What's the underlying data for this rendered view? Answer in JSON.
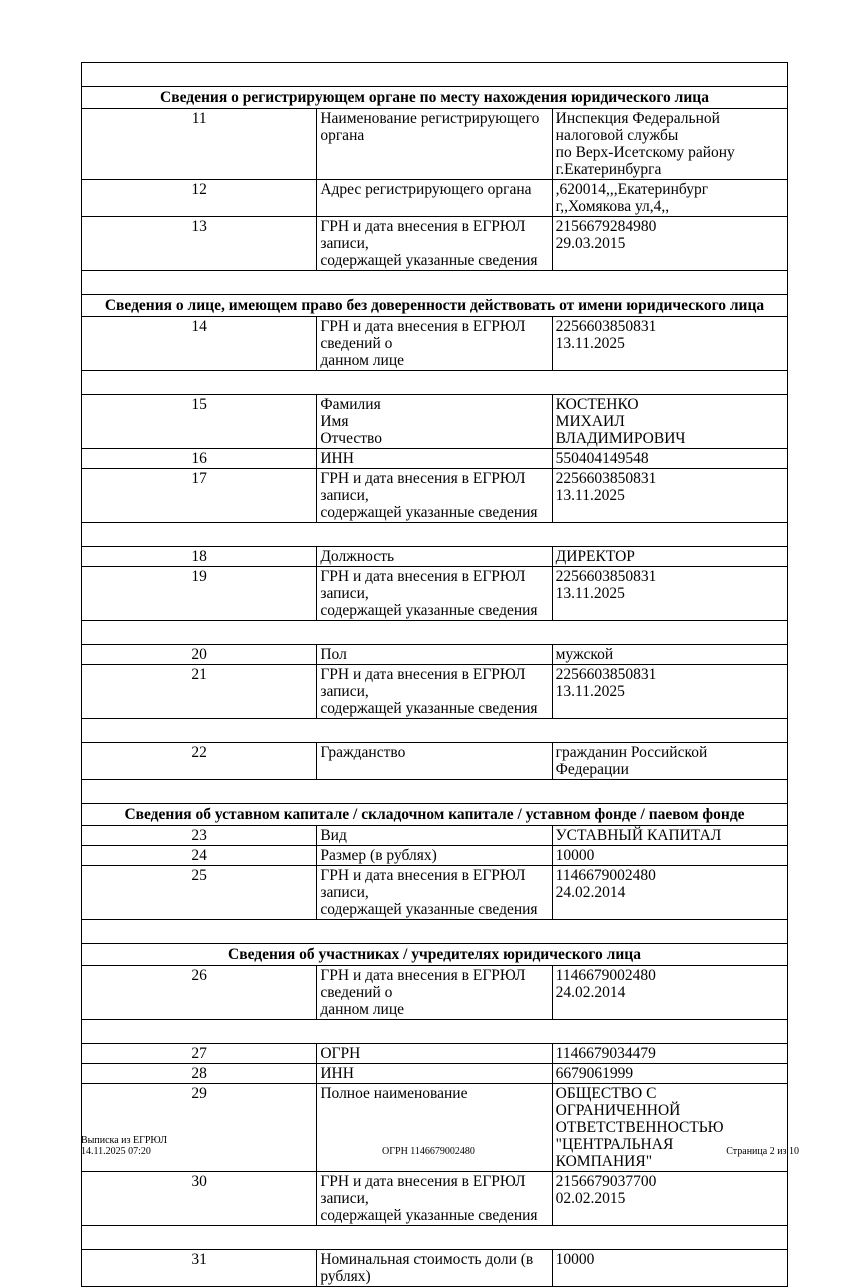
{
  "rows": [
    {
      "type": "empty"
    },
    {
      "type": "header",
      "text": "Сведения о регистрирующем органе по месту нахождения юридического лица"
    },
    {
      "type": "row",
      "num": "11",
      "label": "Наименование регистрирующего органа",
      "value": "Инспекция Федеральной налоговой службы\nпо Верх-Исетскому району г.Екатеринбурга"
    },
    {
      "type": "row",
      "num": "12",
      "label": "Адрес регистрирующего органа",
      "value": ",620014,,,Екатеринбург г,,Хомякова ул,4,,"
    },
    {
      "type": "row",
      "num": "13",
      "label": "ГРН и дата внесения в ЕГРЮЛ записи,\nсодержащей указанные сведения",
      "value": "2156679284980\n29.03.2015"
    },
    {
      "type": "empty"
    },
    {
      "type": "header",
      "text": "Сведения о лице, имеющем право без доверенности действовать от имени юридического лица"
    },
    {
      "type": "row",
      "num": "14",
      "label": "ГРН и дата внесения в ЕГРЮЛ сведений о\nданном лице",
      "value": "2256603850831\n13.11.2025"
    },
    {
      "type": "empty"
    },
    {
      "type": "row",
      "num": "15",
      "label": "Фамилия\nИмя\nОтчество",
      "value": "КОСТЕНКО\nМИХАИЛ\nВЛАДИМИРОВИЧ"
    },
    {
      "type": "row",
      "num": "16",
      "label": "ИНН",
      "value": "550404149548"
    },
    {
      "type": "row",
      "num": "17",
      "label": "ГРН и дата внесения в ЕГРЮЛ записи,\nсодержащей указанные сведения",
      "value": "2256603850831\n13.11.2025"
    },
    {
      "type": "empty"
    },
    {
      "type": "row",
      "num": "18",
      "label": "Должность",
      "value": "ДИРЕКТОР"
    },
    {
      "type": "row",
      "num": "19",
      "label": "ГРН и дата внесения в ЕГРЮЛ записи,\nсодержащей указанные сведения",
      "value": "2256603850831\n13.11.2025"
    },
    {
      "type": "empty"
    },
    {
      "type": "row",
      "num": "20",
      "label": "Пол",
      "value": "мужской"
    },
    {
      "type": "row",
      "num": "21",
      "label": "ГРН и дата внесения в ЕГРЮЛ записи,\nсодержащей указанные сведения",
      "value": "2256603850831\n13.11.2025"
    },
    {
      "type": "empty"
    },
    {
      "type": "row",
      "num": "22",
      "label": "Гражданство",
      "value": "гражданин Российской Федерации"
    },
    {
      "type": "empty"
    },
    {
      "type": "header",
      "text": "Сведения об уставном капитале / складочном капитале / уставном фонде / паевом фонде"
    },
    {
      "type": "row",
      "num": "23",
      "label": "Вид",
      "value": "УСТАВНЫЙ КАПИТАЛ"
    },
    {
      "type": "row",
      "num": "24",
      "label": "Размер (в рублях)",
      "value": "10000"
    },
    {
      "type": "row",
      "num": "25",
      "label": "ГРН и дата внесения в ЕГРЮЛ записи,\nсодержащей указанные сведения",
      "value": "1146679002480\n24.02.2014"
    },
    {
      "type": "empty"
    },
    {
      "type": "header",
      "text": "Сведения об участниках / учредителях юридического лица"
    },
    {
      "type": "row",
      "num": "26",
      "label": "ГРН и дата внесения в ЕГРЮЛ сведений о\nданном лице",
      "value": "1146679002480\n24.02.2014"
    },
    {
      "type": "empty"
    },
    {
      "type": "row",
      "num": "27",
      "label": "ОГРН",
      "value": "1146679034479"
    },
    {
      "type": "row",
      "num": "28",
      "label": "ИНН",
      "value": "6679061999"
    },
    {
      "type": "row",
      "num": "29",
      "label": "Полное наименование",
      "value": "ОБЩЕСТВО С ОГРАНИЧЕННОЙ\nОТВЕТСТВЕННОСТЬЮ \"ЦЕНТРАЛЬНАЯ\nКОМПАНИЯ\""
    },
    {
      "type": "row",
      "num": "30",
      "label": "ГРН и дата внесения в ЕГРЮЛ записи,\nсодержащей указанные сведения",
      "value": "2156679037700\n02.02.2015"
    },
    {
      "type": "empty"
    },
    {
      "type": "row",
      "num": "31",
      "label": "Номинальная стоимость доли (в рублях)",
      "value": "10000"
    }
  ],
  "footer": {
    "doc_name": "Выписка из ЕГРЮЛ",
    "datetime": "14.11.2025 07:20",
    "ogrn": "ОГРН 1146679002480",
    "page": "Страница 2 из 10"
  }
}
